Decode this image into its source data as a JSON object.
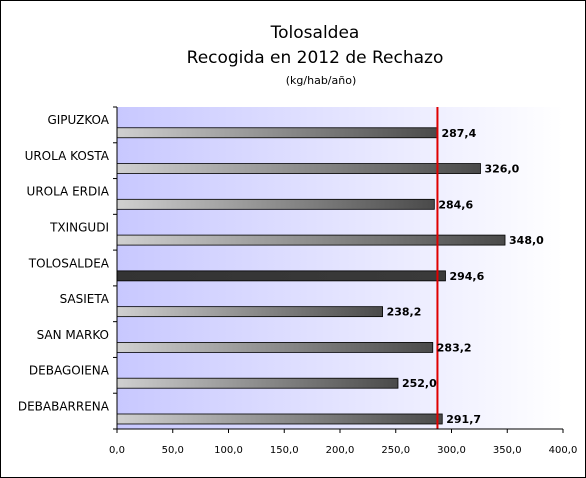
{
  "chart_data": {
    "type": "bar",
    "orientation": "horizontal",
    "title": "Tolosaldea",
    "subtitle": "Recogida en 2012 de Rechazo",
    "unit": "(kg/hab/año)",
    "categories": [
      "GIPUZKOA",
      "UROLA KOSTA",
      "UROLA ERDIA",
      "TXINGUDI",
      "TOLOSALDEA",
      "SASIETA",
      "SAN MARKO",
      "DEBAGOIENA",
      "DEBABARRENA"
    ],
    "values": [
      287.4,
      326.0,
      284.6,
      348.0,
      294.6,
      238.2,
      283.2,
      252.0,
      291.7
    ],
    "value_labels": [
      "287,4",
      "326,0",
      "284,6",
      "348,0",
      "294,6",
      "238,2",
      "283,2",
      "252,0",
      "291,7"
    ],
    "highlight_category": "TOLOSALDEA",
    "reference_line": {
      "value": 287.4,
      "color": "#e00000"
    },
    "xlim": [
      0,
      400
    ],
    "x_ticks": [
      "0,0",
      "50,0",
      "100,0",
      "150,0",
      "200,0",
      "250,0",
      "300,0",
      "350,0",
      "400,0"
    ],
    "xlabel": "",
    "ylabel": "",
    "grid": false,
    "legend": "none",
    "colors": {
      "plot_bg_left": "#c8c8ff",
      "plot_bg_right": "#ffffff",
      "bar_light": "#d0d0d0",
      "bar_dark": "#4a4a4a",
      "bar_highlight": "#333333"
    }
  }
}
